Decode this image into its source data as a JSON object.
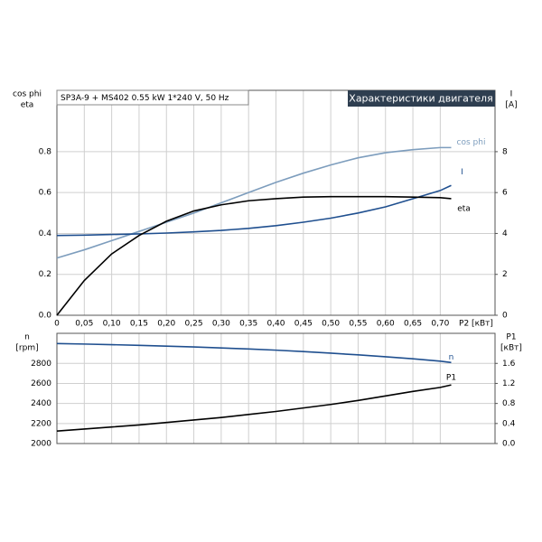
{
  "chart_data": [
    {
      "type": "line",
      "title": "Характеристики двигателя",
      "subtitle": "SP3A-9 + MS402  0.55 kW  1*240 V, 50 Hz",
      "ylabel": [
        "cos phi",
        "eta"
      ],
      "y2label": [
        "I",
        "[A]"
      ],
      "xlabel": "P2 [кВт]",
      "x": [
        0,
        0.05,
        0.1,
        0.15,
        0.2,
        0.25,
        0.3,
        0.35,
        0.4,
        0.45,
        0.5,
        0.55,
        0.6,
        0.65,
        0.7,
        0.72
      ],
      "series": [
        {
          "name": "cos phi",
          "color": "#7d9dbd",
          "values": [
            0.28,
            0.32,
            0.365,
            0.41,
            0.455,
            0.5,
            0.55,
            0.6,
            0.65,
            0.695,
            0.735,
            0.77,
            0.795,
            0.81,
            0.82,
            0.82
          ]
        },
        {
          "name": "I",
          "color": "#1f4f8f",
          "axis": "y2",
          "values": [
            3.9,
            3.92,
            3.95,
            3.98,
            4.02,
            4.08,
            4.15,
            4.25,
            4.38,
            4.55,
            4.75,
            5.0,
            5.3,
            5.7,
            6.1,
            6.35
          ]
        },
        {
          "name": "eta",
          "color": "#000000",
          "values": [
            0,
            0.17,
            0.3,
            0.39,
            0.46,
            0.51,
            0.54,
            0.56,
            0.57,
            0.578,
            0.58,
            0.58,
            0.58,
            0.578,
            0.575,
            0.57
          ]
        }
      ],
      "xlim": [
        0,
        0.8
      ],
      "xticks": [
        0,
        {
          "value": 0.05,
          "label": "0,05"
        },
        {
          "value": 0.1,
          "label": "0,10"
        },
        {
          "value": 0.15,
          "label": "0,15"
        },
        {
          "value": 0.2,
          "label": "0,20"
        },
        {
          "value": 0.25,
          "label": "0,25"
        },
        {
          "value": 0.3,
          "label": "0,30"
        },
        {
          "value": 0.35,
          "label": "0,35"
        },
        {
          "value": 0.4,
          "label": "0,40"
        },
        {
          "value": 0.45,
          "label": "0,45"
        },
        {
          "value": 0.5,
          "label": "0,50"
        },
        {
          "value": 0.55,
          "label": "0,55"
        },
        {
          "value": 0.6,
          "label": "0,60"
        },
        {
          "value": 0.65,
          "label": "0,65"
        },
        {
          "value": 0.7,
          "label": "0,70"
        }
      ],
      "ylim": [
        0,
        1.1
      ],
      "yticks": [
        {
          "value": 0,
          "label": "0.0"
        },
        0.2,
        0.4,
        0.6,
        0.8
      ],
      "y2lim": [
        0,
        11
      ],
      "y2ticks": [
        0,
        2,
        4,
        6,
        8
      ],
      "grid": true,
      "show_xtick_labels": true
    },
    {
      "type": "line",
      "ylabel": [
        "n",
        "[rpm]"
      ],
      "y2label": [
        "P1",
        "[кВт]"
      ],
      "x": [
        0,
        0.05,
        0.1,
        0.15,
        0.2,
        0.25,
        0.3,
        0.35,
        0.4,
        0.45,
        0.5,
        0.55,
        0.6,
        0.65,
        0.7,
        0.72
      ],
      "series": [
        {
          "name": "n",
          "color": "#1f4f8f",
          "values": [
            2998,
            2993,
            2987,
            2980,
            2972,
            2964,
            2954,
            2944,
            2932,
            2918,
            2902,
            2885,
            2866,
            2846,
            2822,
            2809
          ]
        },
        {
          "name": "P1",
          "color": "#000000",
          "axis": "y2",
          "values": [
            0.25,
            0.29,
            0.33,
            0.37,
            0.42,
            0.47,
            0.52,
            0.58,
            0.64,
            0.71,
            0.78,
            0.86,
            0.95,
            1.04,
            1.12,
            1.17
          ]
        }
      ],
      "xlim": [
        0,
        0.8
      ],
      "xticks": [
        0,
        0.05,
        0.1,
        0.15,
        0.2,
        0.25,
        0.3,
        0.35,
        0.4,
        0.45,
        0.5,
        0.55,
        0.6,
        0.65,
        0.7
      ],
      "ylim": [
        2000,
        3100
      ],
      "yticks": [
        2000,
        2200,
        2400,
        2600,
        2800
      ],
      "y2lim": [
        0,
        2.2
      ],
      "y2ticks": [
        {
          "value": 0,
          "label": "0.0"
        },
        0.4,
        0.8,
        1.2,
        1.6
      ],
      "grid": true,
      "show_xtick_labels": false
    }
  ]
}
